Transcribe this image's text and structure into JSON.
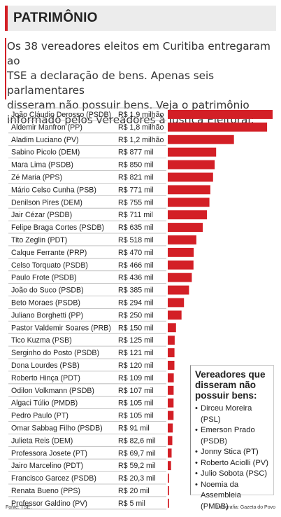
{
  "header": {
    "title": "PATRIMÔNIO",
    "intro_lines": [
      "Os 38 vereadores eleitos em Curitiba entregaram ao",
      "TSE a declaração de bens. Apenas seis parlamentares",
      "disseram não possuir bens. Veja o patrimônio",
      "informado pelos vereadores à Justiça Eleitoral:"
    ]
  },
  "colors": {
    "accent": "#d31f26",
    "bar": "#d31f26",
    "title_bg": "#ececec"
  },
  "chart_data": {
    "type": "bar",
    "orientation": "horizontal",
    "unit": "R$",
    "categories": [
      "João Cláudio Derosso (PSDB)",
      "Aldemir Manfron (PP)",
      "Aladim Luciano (PV)",
      "Sabino Picolo (DEM)",
      "Mara Lima (PSDB)",
      "Zé Maria (PPS)",
      "Mário Celso Cunha (PSB)",
      "Denilson Pires (DEM)",
      "Jair Cézar (PSDB)",
      "Felipe Braga Cortes (PSDB)",
      "Tito Zeglin (PDT)",
      "Calque Ferrante (PRP)",
      "Celso Torquato (PSDB)",
      "Paulo Frote (PSDB)",
      "João do Suco (PSDB)",
      "Beto Moraes (PSDB)",
      "Juliano Borghetti (PP)",
      "Pastor Valdemir Soares (PRB)",
      "Tico Kuzma (PSB)",
      "Serginho do Posto (PSDB)",
      "Dona Lourdes (PSB)",
      "Roberto Hinça (PDT)",
      "Odilon Volkmann (PSDB)",
      "Algaci Túlio (PMDB)",
      "Pedro Paulo (PT)",
      "Omar Sabbag Filho (PSDB)",
      "Julieta Reis (DEM)",
      "Professora Josete (PT)",
      "Jairo Marcelino (PDT)",
      "Francisco Garcez (PSDB)",
      "Renata Bueno (PPS)",
      "Professor Galdino (PV)"
    ],
    "value_labels": [
      "R$ 1,9 milhão",
      "R$ 1,8 milhão",
      "R$ 1,2 milhão",
      "R$ 877 mil",
      "R$ 850 mil",
      "R$ 821 mil",
      "R$ 771 mil",
      "R$ 755 mil",
      "R$ 711 mil",
      "R$ 635 mil",
      "R$ 518 mil",
      "R$ 470 mil",
      "R$ 466 mil",
      "R$ 436 mil",
      "R$ 385 mil",
      "R$ 294 mil",
      "R$ 250 mil",
      "R$ 150 mil",
      "R$ 125 mil",
      "R$ 121 mil",
      "R$ 120 mil",
      "R$ 109 mil",
      "R$ 107 mil",
      "R$ 105 mil",
      "R$ 105 mil",
      "R$ 91 mil",
      "R$ 82,6 mil",
      "R$ 69,7 mil",
      "R$ 59,2 mil",
      "R$ 20,3 mil",
      "R$ 20 mil",
      "R$ 5 mil"
    ],
    "values": [
      1900000,
      1800000,
      1200000,
      877000,
      850000,
      821000,
      771000,
      755000,
      711000,
      635000,
      518000,
      470000,
      466000,
      436000,
      385000,
      294000,
      250000,
      150000,
      125000,
      121000,
      120000,
      109000,
      107000,
      105000,
      105000,
      91000,
      82600,
      69700,
      59200,
      20300,
      20000,
      5000
    ]
  },
  "no_assets_box": {
    "title_lines": [
      "Vereadores que",
      "disseram não",
      "possuir bens:"
    ],
    "items": [
      "Dirceu Moreira (PSL)",
      "Emerson Prado",
      "(PSDB)",
      "Jonny Stica (PT)",
      "Roberto Aciolli (PV)",
      "Julio Sobota (PSC)",
      "Noemia da",
      "Assembleia (PMDB)"
    ]
  },
  "footer": {
    "source": "Fonte: TSE.",
    "credit": "Infografia: Gazeta do Povo"
  }
}
